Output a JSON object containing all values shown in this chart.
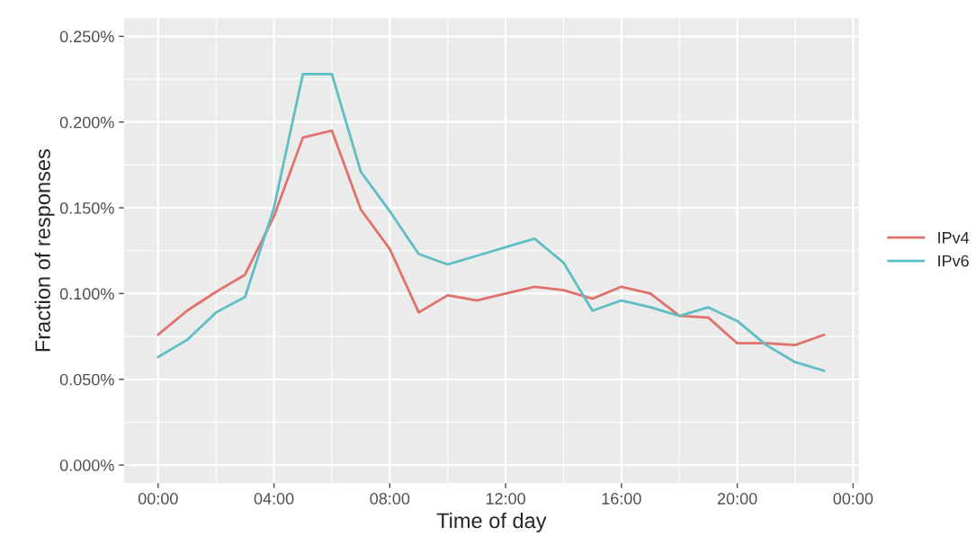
{
  "chart_data": {
    "type": "line",
    "xlabel": "Time of day",
    "ylabel": "Fraction of responses",
    "x": [
      0,
      1,
      2,
      3,
      4,
      5,
      6,
      7,
      8,
      9,
      10,
      11,
      12,
      13,
      14,
      15,
      16,
      17,
      18,
      19,
      20,
      21,
      22,
      23
    ],
    "series": [
      {
        "name": "IPv4",
        "color": "#e0726b",
        "values": [
          0.076,
          0.09,
          0.101,
          0.111,
          0.145,
          0.191,
          0.195,
          0.149,
          0.126,
          0.089,
          0.099,
          0.096,
          0.1,
          0.104,
          0.102,
          0.097,
          0.104,
          0.1,
          0.087,
          0.086,
          0.071,
          0.071,
          0.07,
          0.076
        ]
      },
      {
        "name": "IPv6",
        "color": "#5fbec4",
        "values": [
          0.063,
          0.073,
          0.089,
          0.098,
          0.15,
          0.228,
          0.228,
          0.171,
          0.148,
          0.123,
          0.117,
          0.122,
          0.127,
          0.132,
          0.118,
          0.09,
          0.096,
          0.092,
          0.087,
          0.092,
          0.084,
          0.07,
          0.06,
          0.055
        ]
      }
    ],
    "xlim": [
      -1.18,
      24.2
    ],
    "ylim": [
      -0.0105,
      0.2605
    ],
    "xticks": [
      {
        "value": 0,
        "label": "00:00"
      },
      {
        "value": 4,
        "label": "04:00"
      },
      {
        "value": 8,
        "label": "08:00"
      },
      {
        "value": 12,
        "label": "12:00"
      },
      {
        "value": 16,
        "label": "16:00"
      },
      {
        "value": 20,
        "label": "20:00"
      },
      {
        "value": 24,
        "label": "00:00"
      }
    ],
    "yticks": [
      {
        "value": 0,
        "label": "0.000%"
      },
      {
        "value": 0.05,
        "label": "0.050%"
      },
      {
        "value": 0.1,
        "label": "0.100%"
      },
      {
        "value": 0.15,
        "label": "0.150%"
      },
      {
        "value": 0.2,
        "label": "0.200%"
      },
      {
        "value": 0.25,
        "label": "0.250%"
      }
    ],
    "grid": true,
    "legend": "right",
    "marker": "none",
    "line_style": "solid"
  }
}
